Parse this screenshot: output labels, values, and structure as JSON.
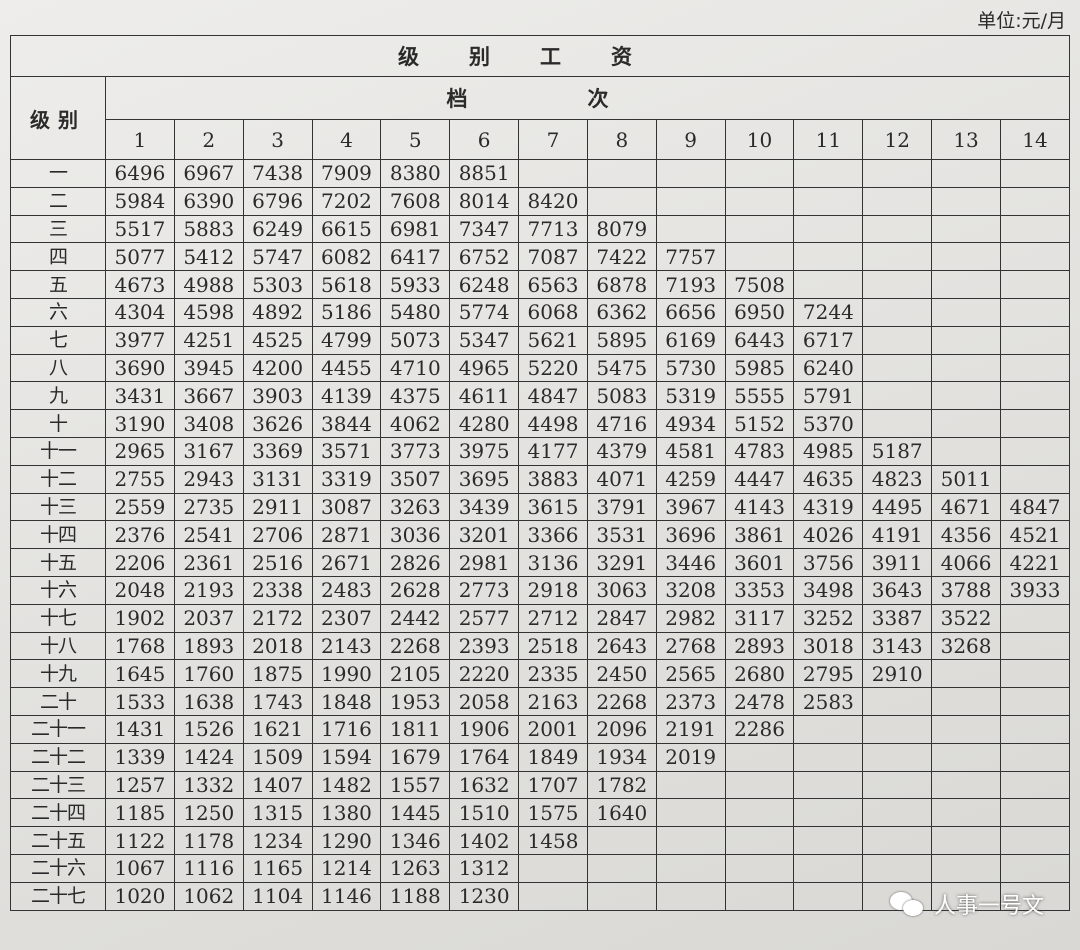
{
  "unit_label": "单位:元/月",
  "table_title": "级别工资",
  "grade_header": "级别",
  "step_header": "档次",
  "steps": [
    "1",
    "2",
    "3",
    "4",
    "5",
    "6",
    "7",
    "8",
    "9",
    "10",
    "11",
    "12",
    "13",
    "14"
  ],
  "rows": [
    {
      "grade": "一",
      "values": [
        6496,
        6967,
        7438,
        7909,
        8380,
        8851
      ]
    },
    {
      "grade": "二",
      "values": [
        5984,
        6390,
        6796,
        7202,
        7608,
        8014,
        8420
      ]
    },
    {
      "grade": "三",
      "values": [
        5517,
        5883,
        6249,
        6615,
        6981,
        7347,
        7713,
        8079
      ]
    },
    {
      "grade": "四",
      "values": [
        5077,
        5412,
        5747,
        6082,
        6417,
        6752,
        7087,
        7422,
        7757
      ]
    },
    {
      "grade": "五",
      "values": [
        4673,
        4988,
        5303,
        5618,
        5933,
        6248,
        6563,
        6878,
        7193,
        7508
      ]
    },
    {
      "grade": "六",
      "values": [
        4304,
        4598,
        4892,
        5186,
        5480,
        5774,
        6068,
        6362,
        6656,
        6950,
        7244
      ]
    },
    {
      "grade": "七",
      "values": [
        3977,
        4251,
        4525,
        4799,
        5073,
        5347,
        5621,
        5895,
        6169,
        6443,
        6717
      ]
    },
    {
      "grade": "八",
      "values": [
        3690,
        3945,
        4200,
        4455,
        4710,
        4965,
        5220,
        5475,
        5730,
        5985,
        6240
      ]
    },
    {
      "grade": "九",
      "values": [
        3431,
        3667,
        3903,
        4139,
        4375,
        4611,
        4847,
        5083,
        5319,
        5555,
        5791
      ]
    },
    {
      "grade": "十",
      "values": [
        3190,
        3408,
        3626,
        3844,
        4062,
        4280,
        4498,
        4716,
        4934,
        5152,
        5370
      ]
    },
    {
      "grade": "十一",
      "values": [
        2965,
        3167,
        3369,
        3571,
        3773,
        3975,
        4177,
        4379,
        4581,
        4783,
        4985,
        5187
      ]
    },
    {
      "grade": "十二",
      "values": [
        2755,
        2943,
        3131,
        3319,
        3507,
        3695,
        3883,
        4071,
        4259,
        4447,
        4635,
        4823,
        5011
      ]
    },
    {
      "grade": "十三",
      "values": [
        2559,
        2735,
        2911,
        3087,
        3263,
        3439,
        3615,
        3791,
        3967,
        4143,
        4319,
        4495,
        4671,
        4847
      ]
    },
    {
      "grade": "十四",
      "values": [
        2376,
        2541,
        2706,
        2871,
        3036,
        3201,
        3366,
        3531,
        3696,
        3861,
        4026,
        4191,
        4356,
        4521
      ]
    },
    {
      "grade": "十五",
      "values": [
        2206,
        2361,
        2516,
        2671,
        2826,
        2981,
        3136,
        3291,
        3446,
        3601,
        3756,
        3911,
        4066,
        4221
      ]
    },
    {
      "grade": "十六",
      "values": [
        2048,
        2193,
        2338,
        2483,
        2628,
        2773,
        2918,
        3063,
        3208,
        3353,
        3498,
        3643,
        3788,
        3933
      ]
    },
    {
      "grade": "十七",
      "values": [
        1902,
        2037,
        2172,
        2307,
        2442,
        2577,
        2712,
        2847,
        2982,
        3117,
        3252,
        3387,
        3522
      ]
    },
    {
      "grade": "十八",
      "values": [
        1768,
        1893,
        2018,
        2143,
        2268,
        2393,
        2518,
        2643,
        2768,
        2893,
        3018,
        3143,
        3268
      ]
    },
    {
      "grade": "十九",
      "values": [
        1645,
        1760,
        1875,
        1990,
        2105,
        2220,
        2335,
        2450,
        2565,
        2680,
        2795,
        2910
      ]
    },
    {
      "grade": "二十",
      "values": [
        1533,
        1638,
        1743,
        1848,
        1953,
        2058,
        2163,
        2268,
        2373,
        2478,
        2583
      ]
    },
    {
      "grade": "二十一",
      "values": [
        1431,
        1526,
        1621,
        1716,
        1811,
        1906,
        2001,
        2096,
        2191,
        2286
      ]
    },
    {
      "grade": "二十二",
      "values": [
        1339,
        1424,
        1509,
        1594,
        1679,
        1764,
        1849,
        1934,
        2019
      ]
    },
    {
      "grade": "二十三",
      "values": [
        1257,
        1332,
        1407,
        1482,
        1557,
        1632,
        1707,
        1782
      ]
    },
    {
      "grade": "二十四",
      "values": [
        1185,
        1250,
        1315,
        1380,
        1445,
        1510,
        1575,
        1640
      ]
    },
    {
      "grade": "二十五",
      "values": [
        1122,
        1178,
        1234,
        1290,
        1346,
        1402,
        1458
      ]
    },
    {
      "grade": "二十六",
      "values": [
        1067,
        1116,
        1165,
        1214,
        1263,
        1312
      ]
    },
    {
      "grade": "二十七",
      "values": [
        1020,
        1062,
        1104,
        1146,
        1188,
        1230
      ]
    }
  ],
  "watermark": {
    "text": "人事一号文",
    "icon": "wechat-icon"
  }
}
